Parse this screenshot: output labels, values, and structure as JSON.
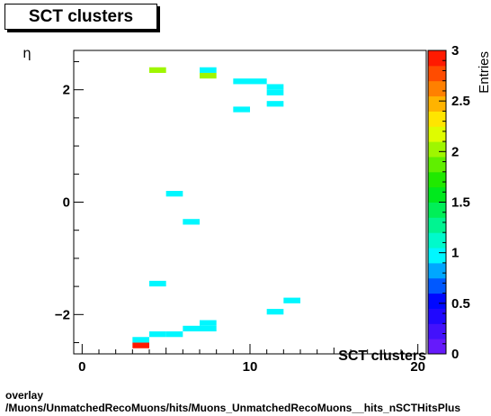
{
  "chart_data": {
    "type": "heatmap",
    "title": "SCT clusters",
    "xlabel": "SCT clusters",
    "ylabel": "η",
    "zlabel": "Entries",
    "xlim": [
      -0.5,
      20.5
    ],
    "ylim": [
      -2.7,
      2.7
    ],
    "zlim": [
      0,
      3
    ],
    "x_ticks": [
      0,
      10,
      20
    ],
    "y_ticks": [
      -2,
      0,
      2
    ],
    "z_ticks": [
      0,
      0.5,
      1,
      1.5,
      2,
      2.5,
      3
    ],
    "bin_width_x": 1,
    "bin_height_y": 0.1,
    "cells": [
      {
        "x": 4.5,
        "y": 2.35,
        "value": 2
      },
      {
        "x": 7.5,
        "y": 2.35,
        "value": 1
      },
      {
        "x": 7.5,
        "y": 2.25,
        "value": 2
      },
      {
        "x": 9.5,
        "y": 2.15,
        "value": 1
      },
      {
        "x": 10.5,
        "y": 2.15,
        "value": 1
      },
      {
        "x": 11.5,
        "y": 2.05,
        "value": 1
      },
      {
        "x": 11.5,
        "y": 1.95,
        "value": 1
      },
      {
        "x": 11.5,
        "y": 1.75,
        "value": 1
      },
      {
        "x": 9.5,
        "y": 1.65,
        "value": 1
      },
      {
        "x": 5.5,
        "y": 0.15,
        "value": 1
      },
      {
        "x": 6.5,
        "y": -0.35,
        "value": 1
      },
      {
        "x": 4.5,
        "y": -1.45,
        "value": 1
      },
      {
        "x": 12.5,
        "y": -1.75,
        "value": 1
      },
      {
        "x": 11.5,
        "y": -1.95,
        "value": 1
      },
      {
        "x": 7.5,
        "y": -2.15,
        "value": 1
      },
      {
        "x": 6.5,
        "y": -2.25,
        "value": 1
      },
      {
        "x": 7.5,
        "y": -2.25,
        "value": 1
      },
      {
        "x": 4.5,
        "y": -2.35,
        "value": 1
      },
      {
        "x": 5.5,
        "y": -2.35,
        "value": 1
      },
      {
        "x": 3.5,
        "y": -2.45,
        "value": 1
      },
      {
        "x": 3.5,
        "y": -2.55,
        "value": 3
      }
    ]
  },
  "footer": {
    "line1": "overlay",
    "line2": "/Muons/UnmatchedRecoMuons/hits/Muons_UnmatchedRecoMuons__hits_nSCTHitsPlus"
  }
}
